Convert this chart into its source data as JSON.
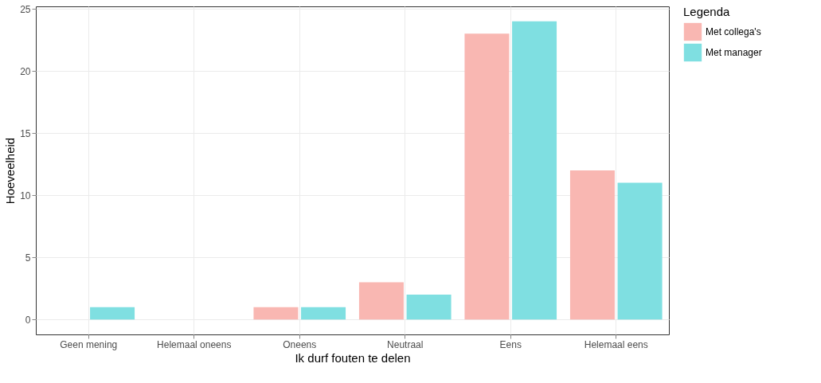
{
  "chart_data": {
    "type": "bar",
    "xlabel": "Ik durf fouten te delen",
    "ylabel": "Hoeveelheid",
    "legend_title": "Legenda",
    "categories": [
      "Geen mening",
      "Helemaal oneens",
      "Oneens",
      "Neutraal",
      "Eens",
      "Helemaal eens"
    ],
    "series": [
      {
        "name": "Met collega's",
        "color": "#f9b7b2",
        "values": [
          0,
          0,
          1,
          3,
          23,
          12
        ]
      },
      {
        "name": "Met manager",
        "color": "#7fdfe1",
        "values": [
          1,
          0,
          1,
          2,
          24,
          11
        ]
      }
    ],
    "ylim": [
      -1.2,
      25.2
    ],
    "yticks": [
      0,
      5,
      10,
      15,
      20,
      25
    ],
    "grid": true,
    "legend": "right"
  }
}
